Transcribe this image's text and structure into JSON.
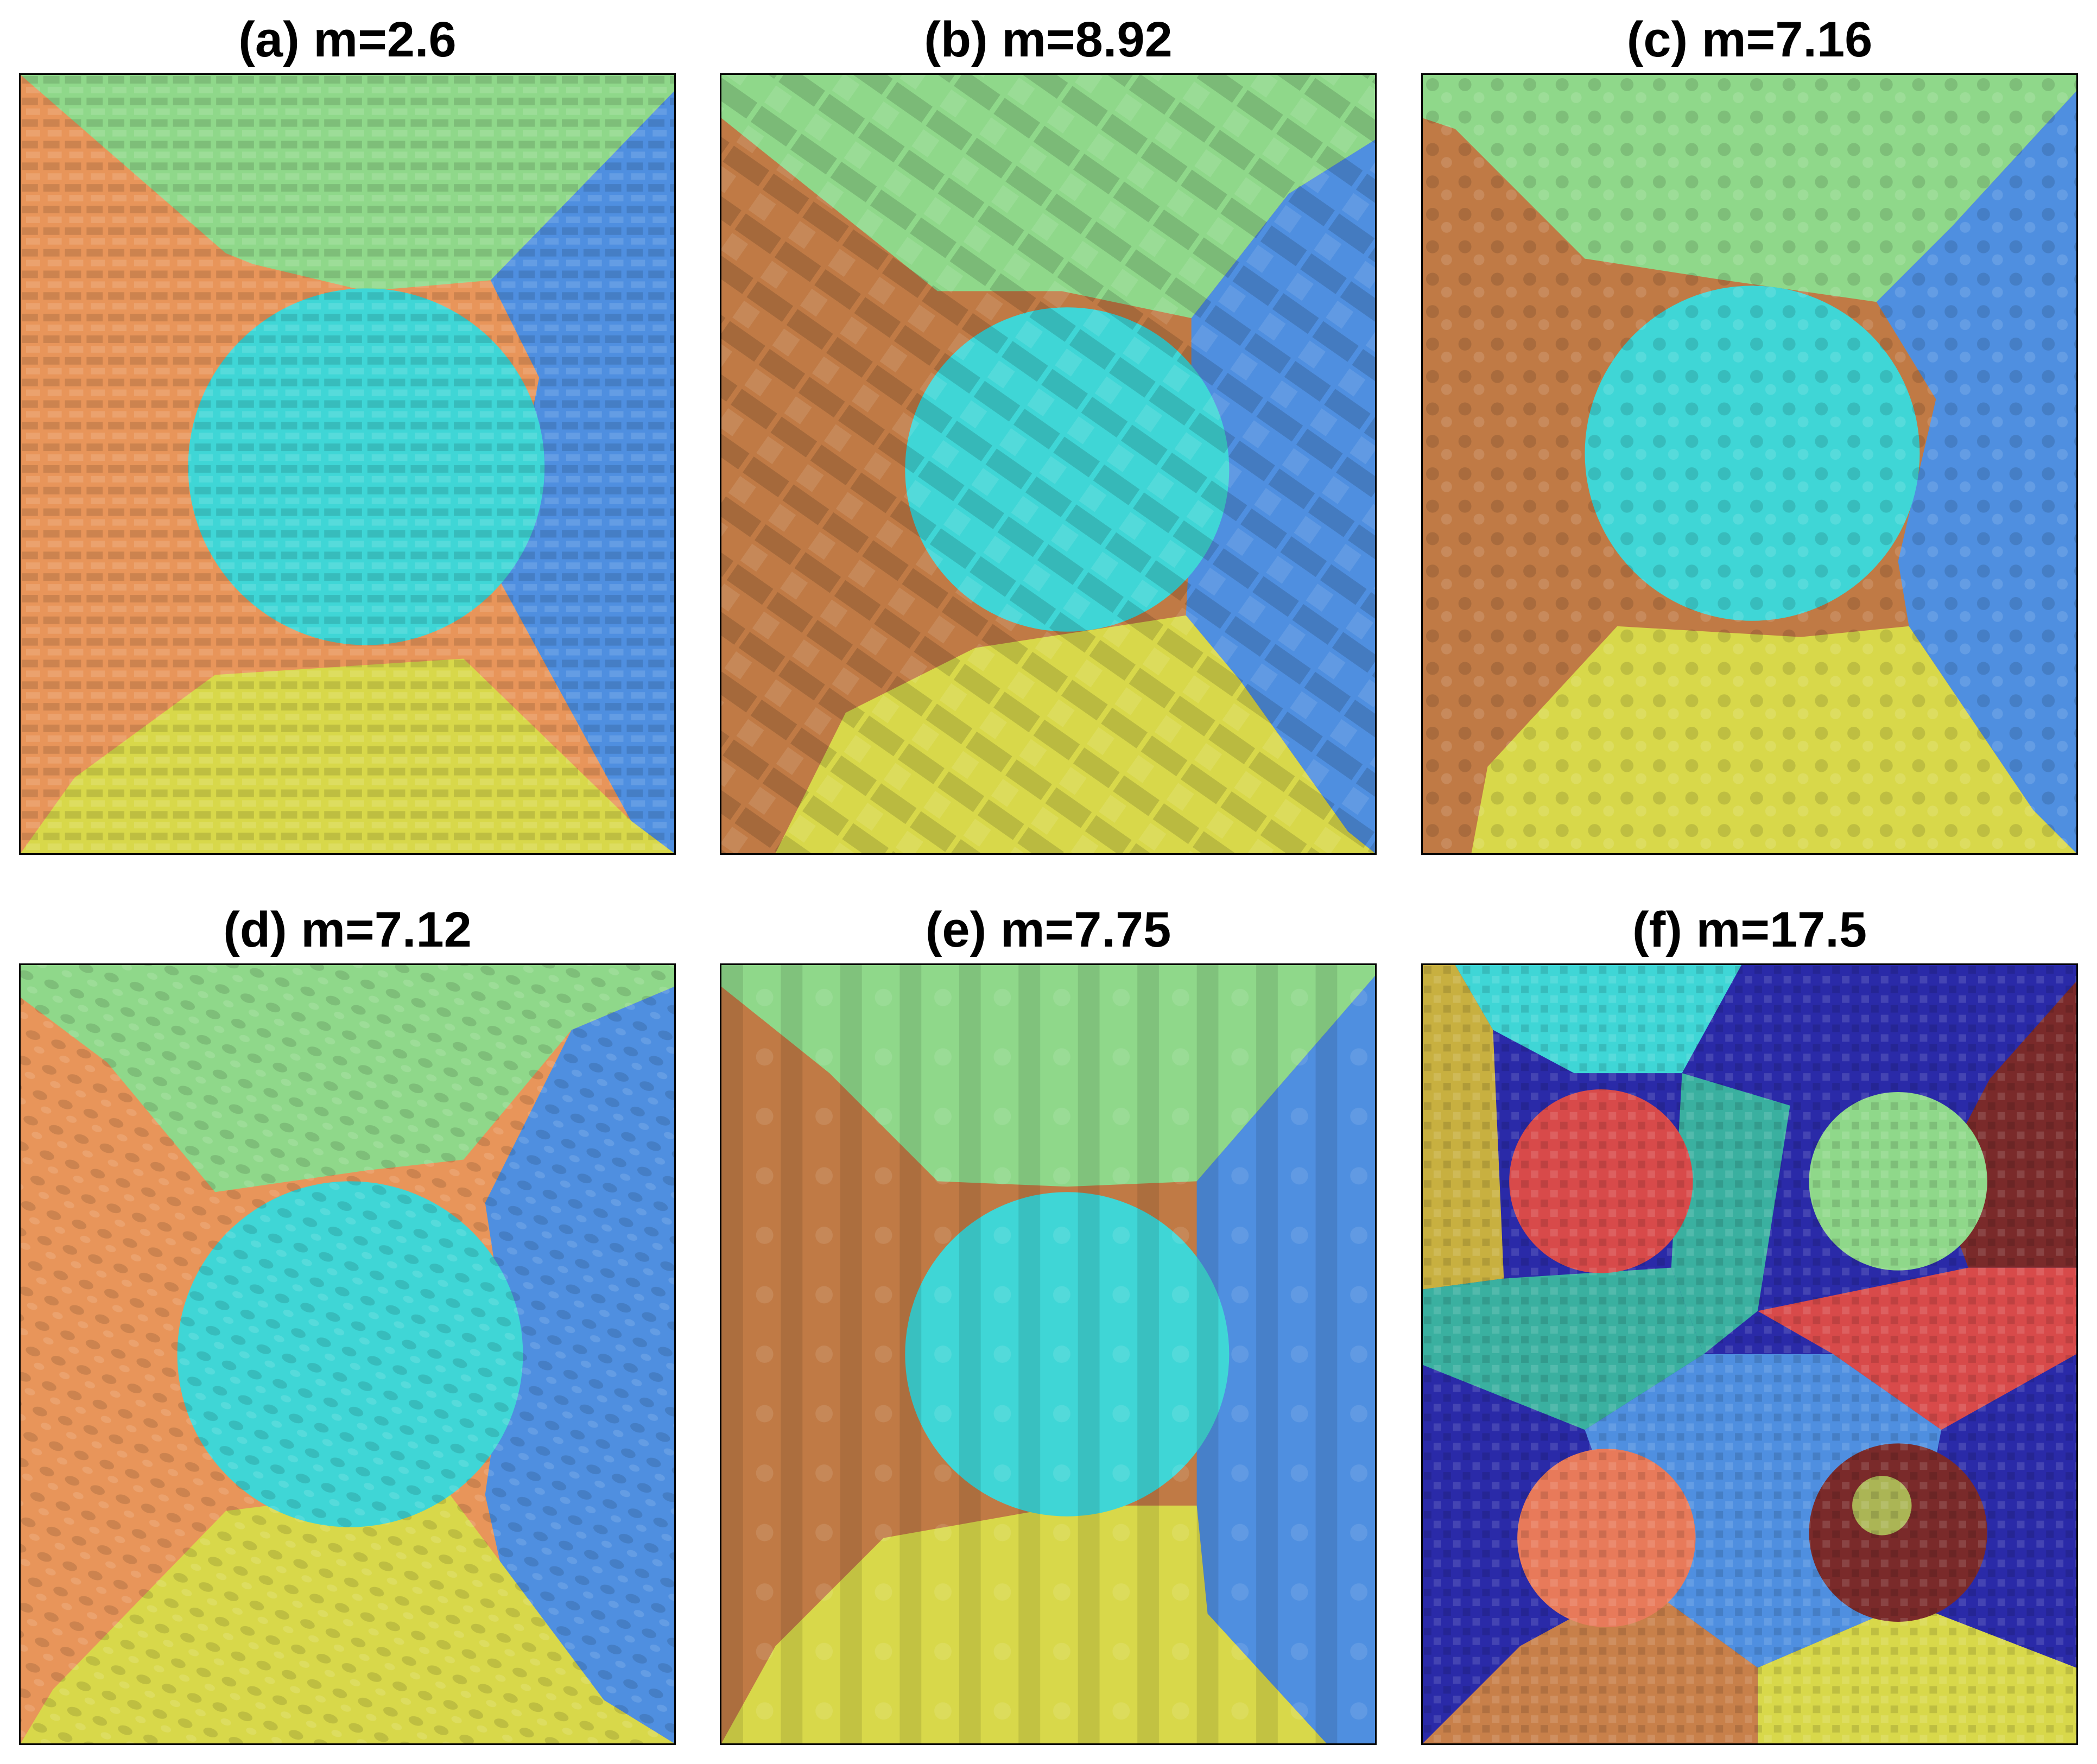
{
  "panels": [
    {
      "id": "a",
      "title": "(a) m=2.6"
    },
    {
      "id": "b",
      "title": "(b) m=8.92"
    },
    {
      "id": "c",
      "title": "(c) m=7.16"
    },
    {
      "id": "d",
      "title": "(d) m=7.12"
    },
    {
      "id": "e",
      "title": "(e) m=7.75"
    },
    {
      "id": "f",
      "title": "(f) m=17.5"
    }
  ],
  "segment_colors": {
    "orange": "#e8955a",
    "green": "#8fd88a",
    "blue": "#4f8fe0",
    "cyan": "#3fd6d6",
    "yellow": "#d8d84a",
    "red": "#d84a4a",
    "dark_red": "#7a2a2a",
    "navy": "#2a2aa8",
    "teal": "#3ab0a0",
    "gold": "#c8b040"
  }
}
